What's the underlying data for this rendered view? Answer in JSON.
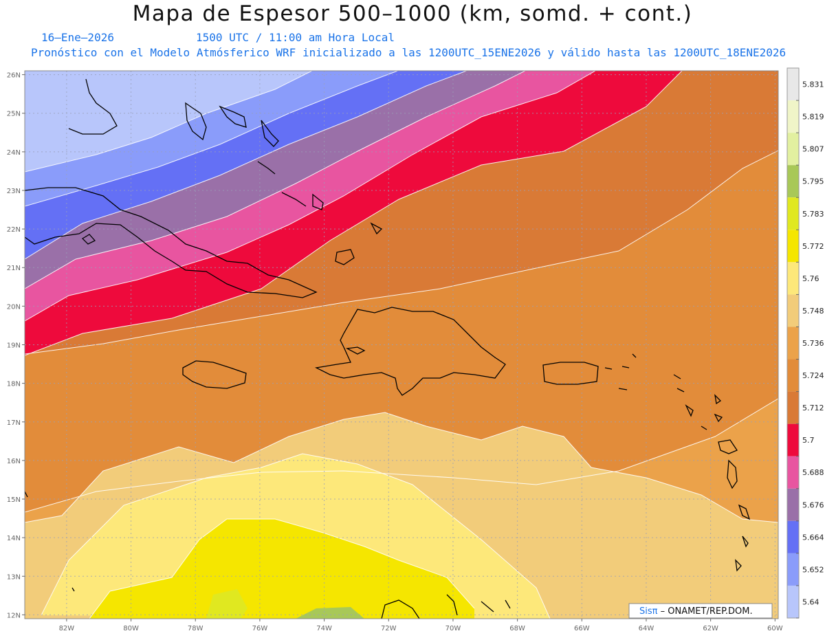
{
  "header": {
    "title": "Mapa de Espesor 500–1000 (km, somd. + cont.)",
    "date": "16–Ene–2026",
    "time": "1500 UTC / 11:00 am Hora Local",
    "description": "Pronóstico con el Modelo Atmósferico WRF inicializado a las 1200UTC_15ENE2026 y válido hasta las  1200UTC_18ENE2026"
  },
  "map": {
    "lat_labels": [
      "26N",
      "25N",
      "24N",
      "23N",
      "22N",
      "21N",
      "20N",
      "19N",
      "18N",
      "17N",
      "16N",
      "15N",
      "14N",
      "13N",
      "12N"
    ],
    "lon_labels": [
      "82W",
      "80W",
      "78W",
      "76W",
      "74W",
      "72W",
      "70W",
      "68W",
      "66W",
      "64W",
      "62W",
      "60W"
    ],
    "lon_range": [
      -83.3,
      -59.9
    ],
    "lat_range": [
      11.9,
      26.1
    ]
  },
  "legend": {
    "labels": [
      "5.831",
      "5.819",
      "5.807",
      "5.795",
      "5.783",
      "5.772",
      "5.76",
      "5.748",
      "5.736",
      "5.724",
      "5.712",
      "5.7",
      "5.688",
      "5.676",
      "5.664",
      "5.652",
      "5.64"
    ],
    "colors": [
      "#e8e8e8",
      "#f0f5c8",
      "#e2f0a0",
      "#a8c858",
      "#e0e820",
      "#f5e600",
      "#fde87a",
      "#f2cc7a",
      "#eba24a",
      "#e28c3a",
      "#d97a36",
      "#ee0a3c",
      "#e855a0",
      "#9a70a8",
      "#6470f5",
      "#8a9cfa",
      "#b8c6fb"
    ]
  },
  "credit": {
    "brand": "Sisπ",
    "text": " – ONAMET/REP.DOM."
  },
  "colors": {
    "accent": "#1a73e8"
  }
}
